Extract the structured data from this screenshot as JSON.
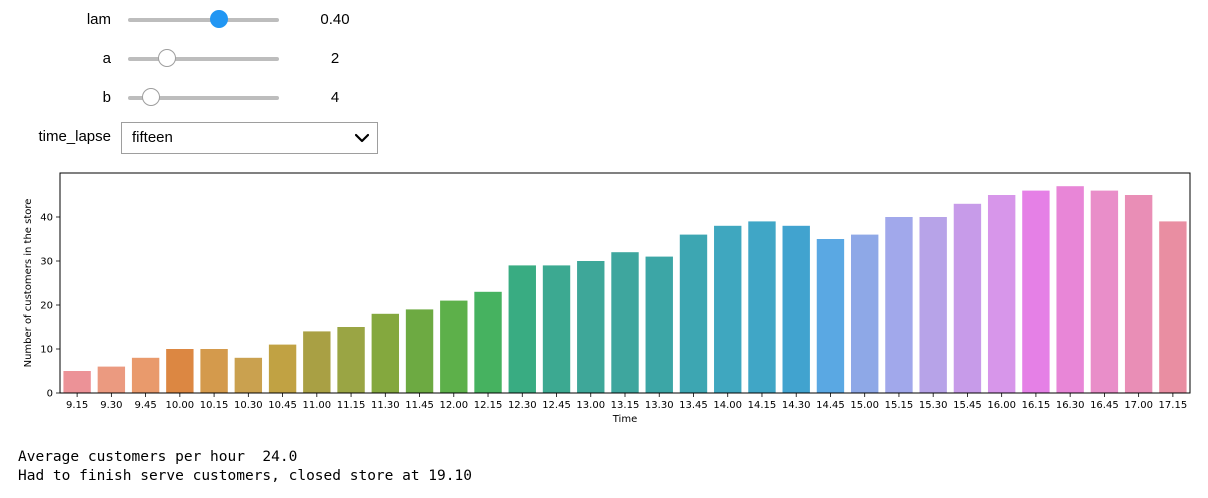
{
  "widgets": {
    "lam": {
      "label": "lam",
      "readout": "0.40",
      "fraction": 0.6
    },
    "a": {
      "label": "a",
      "readout": "2",
      "fraction": 0.26
    },
    "b": {
      "label": "b",
      "readout": "4",
      "fraction": 0.15
    },
    "time_lapse": {
      "label": "time_lapse",
      "selected": "fifteen"
    }
  },
  "colors": {
    "slider_active": "#2196f3",
    "slider_track": "#bdbdbd"
  },
  "icons": {
    "dropdown": "chevron-down-icon"
  },
  "chart_data": {
    "type": "bar",
    "xlabel": "Time",
    "ylabel": "Number of customers in the store",
    "ylim": [
      0,
      50
    ],
    "yticks": [
      0,
      10,
      20,
      30,
      40
    ],
    "grid": false,
    "categories": [
      "9.15",
      "9.30",
      "9.45",
      "10.00",
      "10.15",
      "10.30",
      "10.45",
      "11.00",
      "11.15",
      "11.30",
      "11.45",
      "12.00",
      "12.15",
      "12.30",
      "12.45",
      "13.00",
      "13.15",
      "13.30",
      "13.45",
      "14.00",
      "14.15",
      "14.30",
      "14.45",
      "15.00",
      "15.15",
      "15.30",
      "15.45",
      "16.00",
      "16.15",
      "16.30",
      "16.45",
      "17.00",
      "17.15"
    ],
    "values": [
      5,
      6,
      8,
      10,
      10,
      8,
      11,
      14,
      15,
      18,
      19,
      21,
      23,
      29,
      29,
      30,
      32,
      31,
      36,
      38,
      39,
      38,
      35,
      36,
      40,
      40,
      43,
      45,
      46,
      47,
      46,
      45,
      39
    ],
    "colors": [
      "#ec9297",
      "#eb9a80",
      "#e99a6c",
      "#dc8742",
      "#d49a4c",
      "#caa14f",
      "#c1a243",
      "#a9a044",
      "#9aa544",
      "#84a83e",
      "#6daa42",
      "#5db04a",
      "#46b260",
      "#39ac82",
      "#3ca991",
      "#3ea799",
      "#3ea69e",
      "#3ca6a6",
      "#3da6b2",
      "#3fa7bf",
      "#40a6c6",
      "#41a3cf",
      "#5aa8e3",
      "#8ea8e7",
      "#a1a8eb",
      "#b7a3e8",
      "#c79be9",
      "#d796ea",
      "#e580e6",
      "#e886d7",
      "#e98ec9",
      "#e98eb6",
      "#e98ea2"
    ]
  },
  "output": {
    "line1": "Average customers per hour  24.0",
    "line2": "Had to finish serve customers, closed store at 19.10"
  }
}
